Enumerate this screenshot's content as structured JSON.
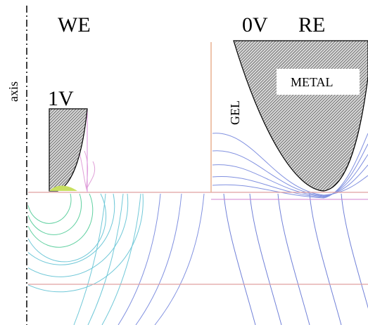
{
  "labels": {
    "we": "WE",
    "zero_v": "0V",
    "re": "RE",
    "axis": "axis",
    "one_v": "1V",
    "metal": "METAL",
    "gel": "GEL"
  }
}
